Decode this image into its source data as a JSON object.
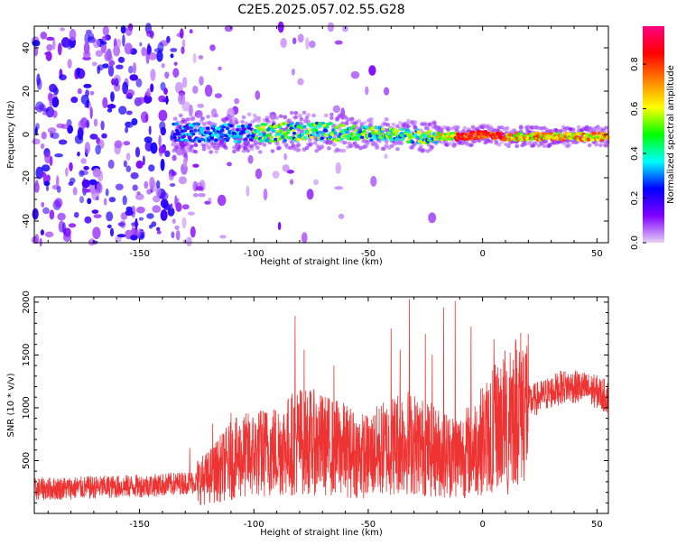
{
  "title": "C2E5.2025.057.02.55.G28",
  "chart_data": [
    {
      "type": "heatmap",
      "xlabel": "Height of straight line (km)",
      "ylabel": "Frequency (Hz)",
      "xlim": [
        -196,
        55
      ],
      "ylim": [
        -50,
        50
      ],
      "xticks": [
        -150,
        -100,
        -50,
        0,
        50
      ],
      "yticks": [
        -40,
        -20,
        0,
        20,
        40
      ],
      "colorbar": {
        "label": "Normalized spectral amplitude",
        "range": [
          0,
          0.97
        ],
        "ticks": [
          0.0,
          0.2,
          0.4,
          0.6,
          0.8
        ],
        "colormap": [
          "#e6d0f5",
          "#8000ff",
          "#0000ff",
          "#00ffff",
          "#00ff00",
          "#ffff00",
          "#ff8000",
          "#ff0000",
          "#ff0080"
        ]
      },
      "trace": [
        {
          "x": -196,
          "y": 0
        },
        {
          "x": -135,
          "y": 1
        },
        {
          "x": -100,
          "y": 0.5
        },
        {
          "x": -75,
          "y": 1.5
        },
        {
          "x": -50,
          "y": 0.5
        },
        {
          "x": -25,
          "y": -1
        },
        {
          "x": -10,
          "y": -1
        },
        {
          "x": 0,
          "y": 0
        },
        {
          "x": 10,
          "y": -1
        },
        {
          "x": 30,
          "y": -1
        },
        {
          "x": 55,
          "y": -1
        }
      ]
    },
    {
      "type": "line",
      "xlabel": "Height of straight line (km)",
      "ylabel": "SNR (10 * v/v)",
      "xlim": [
        -196,
        55
      ],
      "ylim": [
        0,
        2050
      ],
      "xticks": [
        -150,
        -100,
        -50,
        0,
        50
      ],
      "yticks": [
        500,
        1000,
        1500,
        2000
      ],
      "series": [
        {
          "color": "#ee3333",
          "x": [
            -196,
            -180,
            -165,
            -150,
            -140,
            -130,
            -125,
            -120,
            -115,
            -110,
            -105,
            -100,
            -95,
            -90,
            -85,
            -80,
            -75,
            -70,
            -65,
            -60,
            -55,
            -50,
            -45,
            -40,
            -35,
            -30,
            -25,
            -20,
            -15,
            -10,
            -5,
            0,
            5,
            10,
            15,
            20,
            25,
            30,
            35,
            40,
            45,
            50,
            55
          ],
          "y": [
            230,
            240,
            250,
            260,
            270,
            290,
            300,
            340,
            420,
            500,
            540,
            560,
            580,
            600,
            640,
            700,
            680,
            650,
            630,
            600,
            560,
            540,
            600,
            640,
            700,
            660,
            620,
            580,
            560,
            560,
            600,
            700,
            800,
            900,
            1000,
            1050,
            1100,
            1150,
            1200,
            1200,
            1180,
            1150,
            1100
          ]
        }
      ],
      "peaks": [
        {
          "x": -128,
          "y": 620
        },
        {
          "x": -118,
          "y": 850
        },
        {
          "x": -110,
          "y": 950
        },
        {
          "x": -95,
          "y": 950
        },
        {
          "x": -82,
          "y": 1870
        },
        {
          "x": -78,
          "y": 1550
        },
        {
          "x": -65,
          "y": 1400
        },
        {
          "x": -40,
          "y": 1750
        },
        {
          "x": -36,
          "y": 1550
        },
        {
          "x": -32,
          "y": 2030
        },
        {
          "x": -25,
          "y": 1700
        },
        {
          "x": -22,
          "y": 1500
        },
        {
          "x": -17,
          "y": 1950
        },
        {
          "x": -12,
          "y": 2010
        },
        {
          "x": -5,
          "y": 1770
        },
        {
          "x": 5,
          "y": 1650
        },
        {
          "x": 12,
          "y": 1520
        }
      ],
      "dips": [
        {
          "x": 4,
          "y": 200
        },
        {
          "x": 11,
          "y": 180
        }
      ]
    }
  ]
}
